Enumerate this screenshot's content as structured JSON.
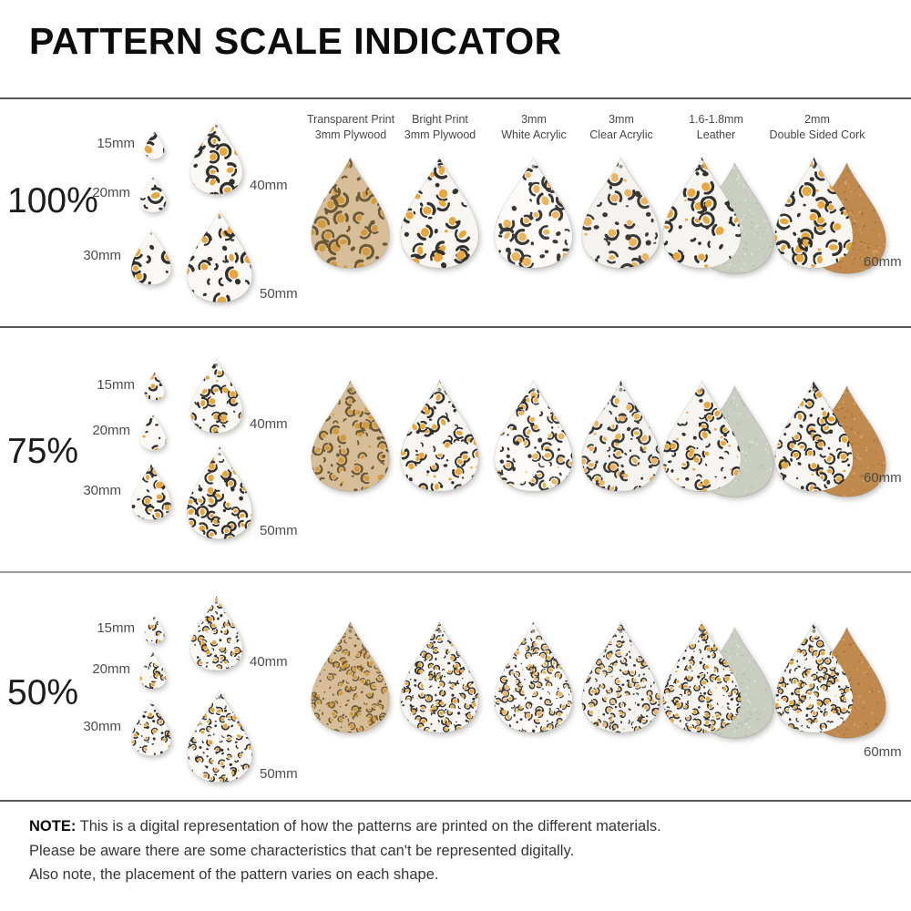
{
  "title": "PATTERN SCALE INDICATOR",
  "rows": [
    {
      "label": "100%",
      "scale": 1.0
    },
    {
      "label": "75%",
      "scale": 0.75
    },
    {
      "label": "50%",
      "scale": 0.5
    }
  ],
  "size_labels": {
    "s15": "15mm",
    "s20": "20mm",
    "s30": "30mm",
    "s40": "40mm",
    "s50": "50mm",
    "s60": "60mm"
  },
  "materials": [
    {
      "id": "transparent-plywood",
      "label_line1": "Transparent Print",
      "label_line2": "3mm Plywood",
      "colors": {
        "bg": "#d8be98",
        "dark": "#6b5834",
        "gold": "#d39b3f"
      }
    },
    {
      "id": "bright-plywood",
      "label_line1": "Bright Print",
      "label_line2": "3mm Plywood",
      "colors": {
        "bg": "#f7f6f2",
        "dark": "#33312d",
        "gold": "#e9a83e"
      }
    },
    {
      "id": "white-acrylic",
      "label_line1": "3mm",
      "label_line2": "White Acrylic",
      "colors": {
        "bg": "#fcfbf9",
        "dark": "#3a3935",
        "gold": "#edb55e"
      }
    },
    {
      "id": "clear-acrylic",
      "label_line1": "3mm",
      "label_line2": "Clear Acrylic",
      "colors": {
        "bg": "#f4f3ef",
        "dark": "#3a3935",
        "gold": "#edb55e"
      }
    },
    {
      "id": "leather",
      "label_line1": "1.6-1.8mm",
      "label_line2": "Leather",
      "colors": {
        "bg": "#f6f5f1",
        "dark": "#33312d",
        "gold": "#e9a83e",
        "back": "#c9cec1",
        "back_dark": "#b6bcab",
        "back_light": "#e0e3d8"
      }
    },
    {
      "id": "cork",
      "label_line1": "2mm",
      "label_line2": "Double Sided Cork",
      "colors": {
        "bg": "#f7f6f2",
        "dark": "#33312d",
        "gold": "#e9a83e",
        "back": "#c08a4e",
        "back_dark": "#a5713a",
        "back_light": "#d6a66b"
      }
    }
  ],
  "small_colors": {
    "bg": "#faf9f6",
    "dark": "#33312d",
    "gold": "#e8a63e"
  },
  "note": {
    "label": "NOTE:",
    "lines": [
      "This is a digital representation of how the patterns are printed on the different materials.",
      "Please be aware there are some characteristics that can't be represented digitally.",
      "Also note, the placement of the pattern varies on each shape."
    ]
  }
}
